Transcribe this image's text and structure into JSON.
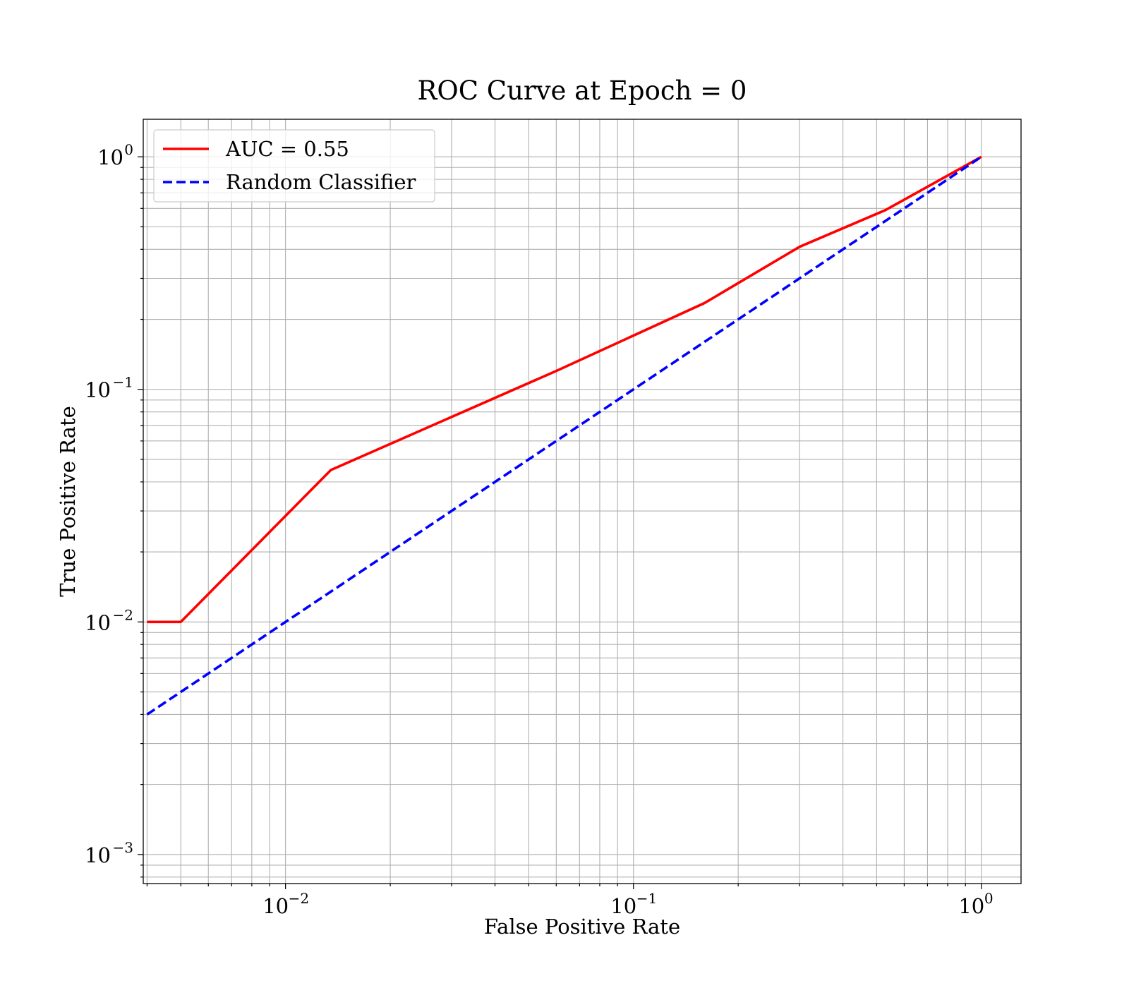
{
  "chart_data": {
    "type": "line",
    "title": "ROC Curve at Epoch = 0",
    "xlabel": "False Positive Rate",
    "ylabel": "True Positive Rate",
    "xscale": "log",
    "yscale": "log",
    "xlim": [
      0.0039,
      1.3
    ],
    "ylim": [
      0.00075,
      1.45
    ],
    "grid": "major and minor",
    "legend_position": "upper-left",
    "xticks": [
      {
        "value": 0.01,
        "base": "10",
        "exp": "−2"
      },
      {
        "value": 0.1,
        "base": "10",
        "exp": "−1"
      },
      {
        "value": 1,
        "base": "10",
        "exp": "0"
      }
    ],
    "yticks": [
      {
        "value": 0.001,
        "base": "10",
        "exp": "−3"
      },
      {
        "value": 0.01,
        "base": "10",
        "exp": "−2"
      },
      {
        "value": 0.1,
        "base": "10",
        "exp": "−1"
      },
      {
        "value": 1,
        "base": "10",
        "exp": "0"
      }
    ],
    "series": [
      {
        "name": "AUC = 0.55",
        "color": "#ff0000",
        "style": "solid",
        "x": [
          0.004,
          0.005,
          0.0135,
          0.06,
          0.16,
          0.3,
          0.53,
          1.0
        ],
        "y": [
          0.01,
          0.01,
          0.045,
          0.12,
          0.235,
          0.41,
          0.59,
          1.0
        ]
      },
      {
        "name": "Random Classifier",
        "color": "#0000ff",
        "style": "dashed",
        "x": [
          0.004,
          1.0
        ],
        "y": [
          0.004,
          1.0
        ]
      }
    ]
  }
}
